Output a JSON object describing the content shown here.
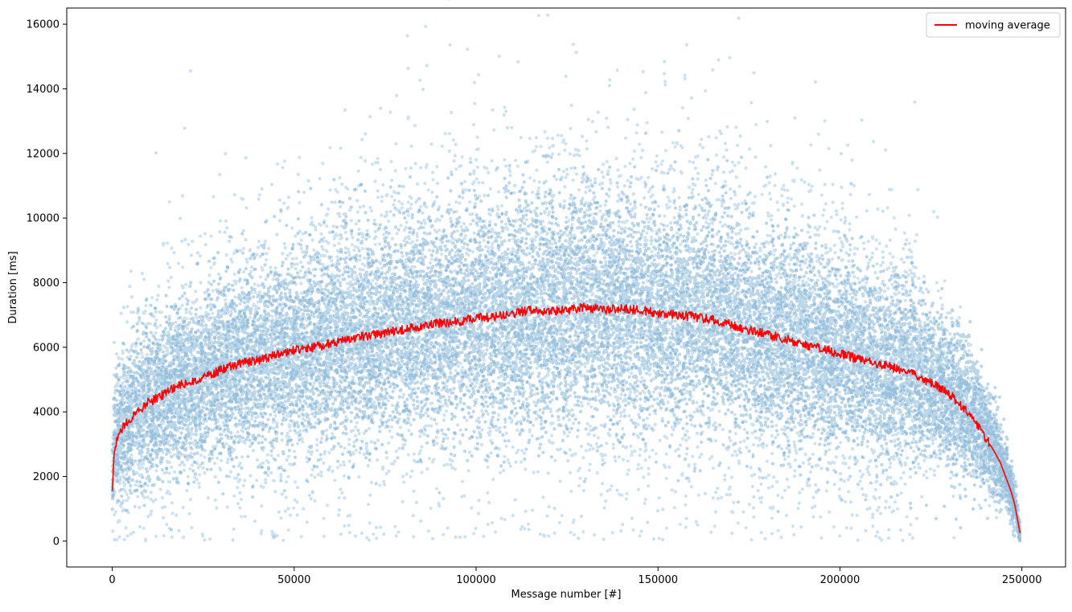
{
  "chart_data": {
    "type": "scatter",
    "title": "",
    "xlabel": "Message number [#]",
    "ylabel": "Duration [ms]",
    "xlim": [
      -12500,
      262000
    ],
    "ylim": [
      -800,
      16500
    ],
    "xticks": [
      0,
      50000,
      100000,
      150000,
      200000,
      250000
    ],
    "xtick_labels": [
      "0",
      "50000",
      "100000",
      "150000",
      "200000",
      "250000"
    ],
    "yticks": [
      0,
      2000,
      4000,
      6000,
      8000,
      10000,
      12000,
      14000,
      16000
    ],
    "ytick_labels": [
      "0",
      "2000",
      "4000",
      "6000",
      "8000",
      "10000",
      "12000",
      "14000",
      "16000"
    ],
    "grid": false,
    "legend": {
      "position": "top-right",
      "entries": [
        "moving average"
      ]
    },
    "colors": {
      "scatter": "#1f77b4",
      "moving_average": "#ff0000",
      "axes": "#000000"
    },
    "series": [
      {
        "kind": "scatter",
        "description_points": "scattered message durations, dense blue cloud",
        "point_count_approx": 250000
      },
      {
        "name": "moving average",
        "kind": "line",
        "x": [
          0,
          500,
          1000,
          2000,
          3000,
          5000,
          7500,
          10000,
          15000,
          20000,
          25000,
          30000,
          35000,
          40000,
          45000,
          50000,
          55000,
          60000,
          65000,
          70000,
          75000,
          80000,
          85000,
          90000,
          95000,
          100000,
          105000,
          110000,
          115000,
          120000,
          125000,
          130000,
          135000,
          140000,
          145000,
          150000,
          155000,
          160000,
          165000,
          170000,
          175000,
          180000,
          185000,
          190000,
          195000,
          200000,
          205000,
          210000,
          215000,
          220000,
          222000,
          225000,
          228000,
          231000,
          234000,
          237000,
          240000,
          242000,
          244000,
          245000,
          246000,
          247000,
          248000,
          248500,
          249000,
          249500
        ],
        "y": [
          1550,
          2700,
          3000,
          3300,
          3550,
          3800,
          4050,
          4300,
          4600,
          4900,
          5050,
          5300,
          5500,
          5600,
          5750,
          5900,
          6000,
          6100,
          6250,
          6350,
          6450,
          6550,
          6650,
          6750,
          6800,
          6900,
          6950,
          7050,
          7150,
          7100,
          7150,
          7250,
          7150,
          7200,
          7150,
          7050,
          7000,
          6950,
          6850,
          6700,
          6550,
          6400,
          6250,
          6100,
          5950,
          5800,
          5650,
          5500,
          5350,
          5200,
          5050,
          4900,
          4700,
          4450,
          4100,
          3700,
          3200,
          2850,
          2450,
          2150,
          1850,
          1550,
          1150,
          850,
          550,
          250
        ]
      }
    ]
  }
}
